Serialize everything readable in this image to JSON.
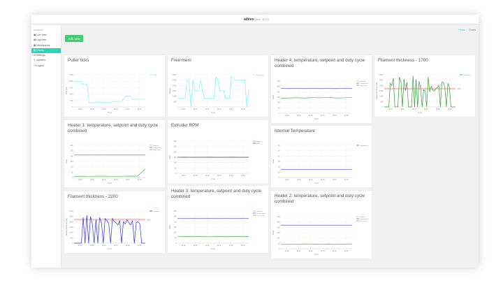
{
  "header": {
    "logo": "adevo",
    "status": "Online",
    "version": "v1.0.0"
  },
  "sidebar": {
    "section": "GENERAL",
    "items": [
      {
        "label": "Live view",
        "icon": "monitor-icon"
      },
      {
        "label": "Log view",
        "icon": "list-icon"
      },
      {
        "label": "Workspaces",
        "icon": "folder-icon"
      },
      {
        "label": "Charts",
        "icon": "chart-icon",
        "active": true
      },
      {
        "label": "Settings",
        "icon": "gear-icon"
      },
      {
        "label": "Updates",
        "icon": "wrench-icon"
      },
      {
        "label": "Logout",
        "icon": "logout-icon"
      }
    ]
  },
  "breadcrumb": {
    "home": "Home",
    "current": "Charts"
  },
  "add_button": "Add new",
  "accent": "#2bd4b8",
  "chart_data": [
    {
      "title": "Puller ticks",
      "type": "line",
      "xlabel": "Time",
      "ylabel": "Ticks [1/s]",
      "ylim": [
        0,
        2500
      ],
      "yticks": [
        0,
        500,
        1000,
        1500,
        2000,
        2500
      ],
      "xticks": [
        "12:00",
        "12:05",
        "12:10",
        "12:15",
        "12:20",
        "12:25"
      ],
      "legend": "top-right",
      "series": [
        {
          "name": "Ticks",
          "color": "#7ff5e6",
          "values": [
            2000,
            2000,
            2000,
            2000,
            1750,
            1750,
            1750,
            300,
            300,
            350,
            350,
            350,
            350,
            350,
            350,
            350,
            350,
            350,
            420,
            420,
            420,
            420,
            450,
            600,
            850,
            850,
            850,
            600,
            600,
            600,
            600,
            600,
            600,
            600
          ]
        }
      ]
    },
    {
      "title": "Free mem",
      "type": "line",
      "xlabel": "Time",
      "ylabel": "Memory",
      "ylim": [
        0,
        3000
      ],
      "yticks": [
        500,
        1000,
        1500,
        2000,
        2500,
        3000
      ],
      "xticks": [
        "12:00",
        "12:05",
        "12:10",
        "12:15",
        "12:20",
        "12:25"
      ],
      "legend": "top-right",
      "series": [
        {
          "name": "Free mem",
          "color": "#7ff5e6",
          "values": [
            800,
            800,
            800,
            800,
            800,
            2500,
            2500,
            0,
            2500,
            1500,
            1500,
            1500,
            2500,
            1500,
            800,
            800,
            800,
            800,
            800,
            800,
            2800,
            2500,
            1500,
            1500,
            1500,
            800,
            800,
            800,
            2800,
            2800,
            2500,
            2500,
            2500,
            2500,
            2500,
            2500,
            0,
            1500
          ]
        }
      ]
    },
    {
      "title": "Heater 4: temperature, setpoint and duty cycle combined",
      "type": "line",
      "xlabel": "Time",
      "ylabel": "Temp",
      "ylim": [
        0,
        300
      ],
      "yticks": [
        0,
        50,
        100,
        150,
        200,
        250,
        300
      ],
      "xticks": [
        "12:00",
        "12:05",
        "12:10",
        "12:15",
        "12:20",
        "12:25"
      ],
      "legend": "top-right",
      "series": [
        {
          "name": "Setpoint",
          "color": "#e8c04a",
          "values": [
            230,
            230,
            230,
            230,
            230,
            230,
            230,
            230,
            230,
            230
          ]
        },
        {
          "name": "Temperature",
          "color": "#6a6af0",
          "values": [
            231,
            230,
            231,
            230,
            231,
            230,
            231,
            230,
            231,
            230
          ]
        },
        {
          "name": "Duty Cycle",
          "color": "#5cb85c",
          "values": [
            140,
            142,
            145,
            141,
            146,
            143,
            147,
            142,
            144,
            148
          ]
        }
      ]
    },
    {
      "title": "Filament thickness - 1700",
      "type": "line",
      "xlabel": "Time",
      "ylabel": "Filament thickness [um]",
      "ylim": [
        0,
        3000
      ],
      "yticks": [
        0,
        500,
        1000,
        1500,
        2000,
        2500,
        3000
      ],
      "xticks": [
        "12:00",
        "12:05",
        "12:10",
        "12:15",
        "12:20",
        "12:25"
      ],
      "legend": "top-right",
      "threshold": {
        "value": 1700,
        "label": "1700",
        "color": "#f08080"
      },
      "series": [
        {
          "name": "Thickness",
          "color": "#3a9a3a",
          "values": [
            0,
            0,
            0,
            0,
            2200,
            2000,
            2700,
            0,
            0,
            0,
            2800,
            2400,
            0,
            2600,
            1500,
            2300,
            0,
            0,
            0,
            2900,
            0,
            2600,
            0,
            2400,
            1800,
            0,
            1600,
            1500,
            0,
            2800,
            1400,
            1900,
            1600,
            1500,
            1700,
            1800,
            2000,
            0,
            2300,
            2300,
            1800,
            0,
            2200,
            1800,
            0,
            0,
            0,
            0
          ]
        }
      ]
    },
    {
      "title": "Heater 1: temperature, setpoint and duty cycle combined",
      "type": "line",
      "xlabel": "Time",
      "ylabel": "Temp",
      "ylim": [
        0,
        300
      ],
      "yticks": [
        0,
        50,
        100,
        150,
        200,
        250,
        300
      ],
      "xticks": [
        "12:00",
        "12:05",
        "12:10",
        "12:15",
        "12:20",
        "12:25"
      ],
      "legend": "top-right",
      "series": [
        {
          "name": "Setpoint",
          "color": "#e8c04a",
          "values": [
            210,
            210,
            210,
            210,
            210,
            210,
            210,
            210,
            210,
            210
          ]
        },
        {
          "name": "Temperature",
          "color": "#6a6af0",
          "values": [
            210,
            210,
            210,
            210,
            210,
            210,
            210,
            210,
            210,
            210
          ]
        },
        {
          "name": "Duty Cycle",
          "color": "#5cb85c",
          "values": [
            10,
            12,
            11,
            13,
            12,
            11,
            12,
            13,
            12,
            80
          ]
        }
      ]
    },
    {
      "title": "Extruder RPM",
      "type": "line",
      "xlabel": "Time",
      "ylabel": "RPM",
      "ylim": [
        0,
        300
      ],
      "yticks": [
        0,
        50,
        100,
        150,
        200,
        250,
        300
      ],
      "xticks": [
        "12:00",
        "12:05",
        "12:10",
        "12:15",
        "12:20",
        "12:25"
      ],
      "legend": "top-right",
      "series": [
        {
          "name": "Setpoint",
          "color": "#f08080",
          "values": [
            150,
            150,
            150,
            150,
            150,
            150,
            150,
            150,
            150,
            150
          ]
        },
        {
          "name": "RPM",
          "color": "#555577",
          "values": [
            150,
            151,
            149,
            150,
            151,
            149,
            150,
            151,
            149,
            150
          ]
        }
      ]
    },
    {
      "title": "Internal Temperature",
      "type": "line",
      "xlabel": "Time",
      "ylabel": "Temp",
      "ylim": [
        0,
        60
      ],
      "yticks": [
        0,
        10,
        20,
        30,
        40,
        50,
        60
      ],
      "xticks": [
        "12:00",
        "12:05",
        "12:10",
        "12:15",
        "12:20",
        "12:25"
      ],
      "legend": "top-right",
      "series": [
        {
          "name": "Temperature",
          "color": "#6a6af0",
          "values": [
            15,
            15,
            15,
            15,
            15,
            15,
            15,
            15,
            15,
            15
          ]
        }
      ]
    },
    {
      "title": "Filament thickness - 2200",
      "type": "line",
      "xlabel": "Time",
      "ylabel": "Filament thickness [um]",
      "ylim": [
        0,
        3000
      ],
      "yticks": [
        0,
        500,
        1000,
        1500,
        2000,
        2500,
        3000
      ],
      "xticks": [
        "12:00",
        "12:05",
        "12:10",
        "12:15",
        "12:20",
        "12:25"
      ],
      "legend": "top-right",
      "threshold": {
        "value": 2200,
        "label": "2200",
        "color": "#f08080"
      },
      "series": [
        {
          "name": "Thickness",
          "color": "#3030e0",
          "values": [
            0,
            0,
            0,
            0,
            0,
            2400,
            0,
            2600,
            0,
            2500,
            1800,
            0,
            2200,
            0,
            2400,
            1900,
            0,
            2300,
            2100,
            1800,
            0,
            2300,
            2000,
            1900,
            1700,
            2100,
            0,
            2000,
            1800,
            2200,
            1900,
            1700,
            2100,
            0,
            1900,
            2000,
            1800,
            0,
            0,
            0
          ]
        }
      ]
    },
    {
      "title": "Heater 3: temperature, setpoint and duty cycle combined",
      "type": "line",
      "xlabel": "Time",
      "ylabel": "Temp",
      "ylim": [
        0,
        300
      ],
      "yticks": [
        0,
        50,
        100,
        150,
        200,
        250,
        300
      ],
      "xticks": [
        "12:00",
        "12:05",
        "12:10",
        "12:15",
        "12:20",
        "12:25"
      ],
      "legend": "top-right",
      "series": [
        {
          "name": "Setpoint",
          "color": "#e8c04a",
          "values": [
            230,
            230,
            230,
            230,
            230,
            230,
            230,
            230,
            230,
            230
          ]
        },
        {
          "name": "Temperature",
          "color": "#6a6af0",
          "values": [
            231,
            230,
            231,
            230,
            231,
            230,
            231,
            230,
            231,
            230
          ]
        },
        {
          "name": "Duty Cycle",
          "color": "#5cb85c",
          "values": [
            60,
            62,
            61,
            63,
            60,
            62,
            61,
            63,
            62,
            61
          ]
        }
      ]
    },
    {
      "title": "Heater 2: temperature, setpoint and duty cycle combined",
      "type": "line",
      "xlabel": "Time",
      "ylabel": "Temp",
      "ylim": [
        0,
        300
      ],
      "yticks": [
        0,
        50,
        100,
        150,
        200,
        250,
        300
      ],
      "xticks": [
        "12:00",
        "12:05",
        "12:10",
        "12:15",
        "12:20",
        "12:25"
      ],
      "legend": "top-right",
      "series": [
        {
          "name": "Setpoint",
          "color": "#e8c04a",
          "values": [
            220,
            220,
            220,
            220,
            220,
            220,
            220,
            220,
            220,
            220
          ]
        },
        {
          "name": "Temperature",
          "color": "#6a6af0",
          "values": [
            220,
            220,
            220,
            220,
            220,
            220,
            220,
            220,
            220,
            220
          ]
        },
        {
          "name": "Duty Cycle",
          "color": "#5cb85c",
          "values": [
            40,
            42,
            41,
            45,
            43,
            41,
            44,
            42,
            43,
            45
          ]
        }
      ]
    }
  ]
}
